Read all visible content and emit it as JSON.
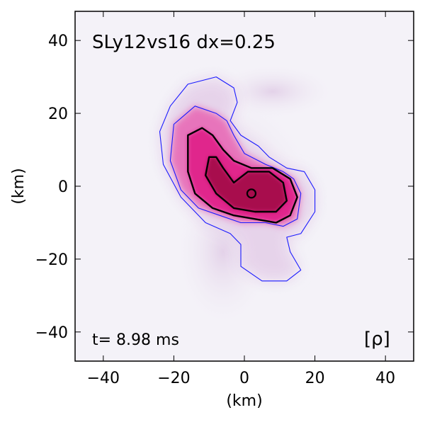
{
  "chart_data": {
    "type": "heatmap",
    "title": "SLy12vs16 dx=0.25",
    "time_label": "t= 8.98 ms",
    "quantity_label": "[ρ]",
    "xlabel": "(km)",
    "ylabel": "(km)",
    "xlim": [
      -48,
      48
    ],
    "ylim": [
      -48,
      48
    ],
    "xticks": [
      -40,
      -20,
      0,
      20,
      40
    ],
    "yticks": [
      -40,
      -20,
      0,
      20,
      40
    ],
    "xtick_labels": [
      "−40",
      "−20",
      "0",
      "20",
      "40"
    ],
    "ytick_labels": [
      "−40",
      "−20",
      "0",
      "20",
      "40"
    ],
    "colors": {
      "background": "#f4f2f8",
      "low_density": "#e6d2ea",
      "mid_density": "#e0208a",
      "high_density": "#a8084e",
      "outer_contour": "#1a1aff",
      "inner_contour": "#000000"
    },
    "contours": [
      {
        "level": "outer",
        "color": "#1a1aff",
        "points": [
          [
            -21,
            22
          ],
          [
            -16,
            28
          ],
          [
            -8,
            30
          ],
          [
            -3,
            27
          ],
          [
            -2,
            23
          ],
          [
            -4,
            18
          ],
          [
            -1,
            14
          ],
          [
            4,
            11
          ],
          [
            7,
            8
          ],
          [
            12,
            5
          ],
          [
            17,
            4
          ],
          [
            20,
            -1
          ],
          [
            20,
            -7
          ],
          [
            16,
            -13
          ],
          [
            12,
            -14
          ],
          [
            13,
            -18
          ],
          [
            16,
            -23
          ],
          [
            12,
            -26
          ],
          [
            5,
            -26
          ],
          [
            -1,
            -22
          ],
          [
            -1,
            -16
          ],
          [
            -4,
            -13
          ],
          [
            -11,
            -10
          ],
          [
            -18,
            -3
          ],
          [
            -23,
            6
          ],
          [
            -24,
            15
          ]
        ]
      },
      {
        "level": "second",
        "color": "#1a1aff",
        "points": [
          [
            -20,
            17
          ],
          [
            -14,
            22
          ],
          [
            -8,
            20
          ],
          [
            -5,
            18
          ],
          [
            -3,
            14
          ],
          [
            0,
            9
          ],
          [
            6,
            6
          ],
          [
            11,
            4
          ],
          [
            14,
            2
          ],
          [
            16,
            -2
          ],
          [
            15,
            -9
          ],
          [
            11,
            -11
          ],
          [
            6,
            -10
          ],
          [
            -1,
            -10
          ],
          [
            -7,
            -8
          ],
          [
            -13,
            -6
          ],
          [
            -18,
            -1
          ],
          [
            -21,
            7
          ]
        ]
      },
      {
        "level": "third",
        "color": "#000000",
        "points": [
          [
            -16,
            14
          ],
          [
            -12,
            16
          ],
          [
            -9,
            14
          ],
          [
            -6,
            10
          ],
          [
            -3,
            7
          ],
          [
            2,
            5
          ],
          [
            8,
            5
          ],
          [
            13,
            2
          ],
          [
            15,
            -3
          ],
          [
            13,
            -8
          ],
          [
            9,
            -10
          ],
          [
            3,
            -9
          ],
          [
            -3,
            -8
          ],
          [
            -9,
            -6
          ],
          [
            -14,
            -2
          ],
          [
            -16,
            4
          ]
        ]
      },
      {
        "level": "core",
        "color": "#000000",
        "points": [
          [
            -10,
            8
          ],
          [
            -8,
            8
          ],
          [
            -6,
            5
          ],
          [
            -3,
            1
          ],
          [
            1,
            4
          ],
          [
            7,
            4
          ],
          [
            11,
            1
          ],
          [
            12,
            -4
          ],
          [
            9,
            -7
          ],
          [
            3,
            -7
          ],
          [
            -3,
            -6
          ],
          [
            -8,
            -2
          ],
          [
            -11,
            3
          ]
        ]
      }
    ]
  }
}
